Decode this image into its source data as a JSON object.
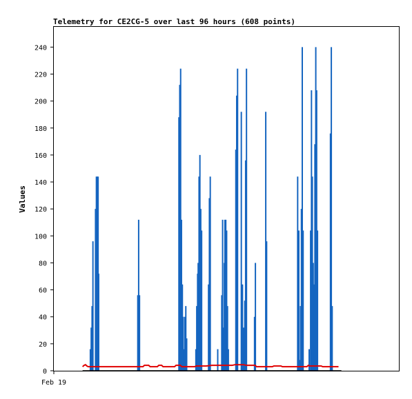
{
  "chart_data": {
    "type": "line",
    "title": "Telemetry for CE2CG-5 over last 96 hours (608 points)",
    "xlabel": "",
    "ylabel": "Values",
    "x_tick_labels": [
      {
        "label": "Feb 19",
        "hours": 0
      }
    ],
    "xlim_hours": [
      0,
      96
    ],
    "ylim": [
      0,
      255
    ],
    "yticks": [
      0,
      20,
      40,
      60,
      80,
      100,
      120,
      140,
      160,
      180,
      200,
      220,
      240
    ],
    "grid": false,
    "legend": "none",
    "colors": {
      "spikes": "#1565c0",
      "baseline": "#e00000",
      "floor": "#000000",
      "frame": "#000000"
    },
    "series": [
      {
        "color": "#1565c0",
        "style": "spikes",
        "points": [
          [
            12.7,
            16
          ],
          [
            13.0,
            32
          ],
          [
            13.3,
            48
          ],
          [
            13.6,
            96
          ],
          [
            14.5,
            120
          ],
          [
            14.8,
            144
          ],
          [
            15.1,
            144
          ],
          [
            15.4,
            144
          ],
          [
            15.6,
            72
          ],
          [
            29.2,
            56
          ],
          [
            29.5,
            112
          ],
          [
            29.8,
            56
          ],
          [
            43.5,
            188
          ],
          [
            43.8,
            212
          ],
          [
            44.1,
            224
          ],
          [
            44.4,
            112
          ],
          [
            44.7,
            64
          ],
          [
            45.0,
            40
          ],
          [
            45.3,
            16
          ],
          [
            45.6,
            40
          ],
          [
            45.9,
            48
          ],
          [
            46.2,
            24
          ],
          [
            49.4,
            16
          ],
          [
            49.7,
            48
          ],
          [
            50.0,
            72
          ],
          [
            50.2,
            80
          ],
          [
            50.5,
            144
          ],
          [
            50.8,
            160
          ],
          [
            51.1,
            120
          ],
          [
            51.4,
            104
          ],
          [
            53.8,
            64
          ],
          [
            54.1,
            128
          ],
          [
            54.4,
            144
          ],
          [
            57.0,
            16
          ],
          [
            58.4,
            56
          ],
          [
            58.7,
            112
          ],
          [
            59.0,
            32
          ],
          [
            59.3,
            80
          ],
          [
            59.5,
            112
          ],
          [
            59.8,
            112
          ],
          [
            60.1,
            104
          ],
          [
            60.4,
            48
          ],
          [
            60.7,
            16
          ],
          [
            63.3,
            164
          ],
          [
            63.6,
            204
          ],
          [
            63.9,
            224
          ],
          [
            65.2,
            192
          ],
          [
            65.6,
            64
          ],
          [
            66.0,
            32
          ],
          [
            66.4,
            52
          ],
          [
            66.7,
            156
          ],
          [
            67.0,
            224
          ],
          [
            69.8,
            40
          ],
          [
            70.1,
            80
          ],
          [
            73.7,
            192
          ],
          [
            74.0,
            96
          ],
          [
            84.8,
            144
          ],
          [
            85.2,
            104
          ],
          [
            85.5,
            8
          ],
          [
            85.8,
            48
          ],
          [
            86.1,
            120
          ],
          [
            86.4,
            240
          ],
          [
            86.7,
            104
          ],
          [
            88.8,
            16
          ],
          [
            89.3,
            104
          ],
          [
            89.6,
            208
          ],
          [
            89.9,
            144
          ],
          [
            90.2,
            80
          ],
          [
            90.5,
            64
          ],
          [
            90.8,
            168
          ],
          [
            91.1,
            240
          ],
          [
            91.4,
            208
          ],
          [
            91.7,
            104
          ],
          [
            96.2,
            176
          ],
          [
            96.5,
            240
          ],
          [
            96.8,
            48
          ]
        ]
      },
      {
        "color": "#e00000",
        "style": "line",
        "points": [
          [
            10.0,
            3
          ],
          [
            10.5,
            4
          ],
          [
            11.0,
            4.5
          ],
          [
            11.5,
            3.5
          ],
          [
            12.0,
            3
          ],
          [
            20,
            3
          ],
          [
            31,
            3
          ],
          [
            31.5,
            4
          ],
          [
            33,
            4
          ],
          [
            33.5,
            3
          ],
          [
            36,
            3
          ],
          [
            36.5,
            4
          ],
          [
            37.5,
            4
          ],
          [
            38,
            3
          ],
          [
            42,
            3
          ],
          [
            42.5,
            4
          ],
          [
            44,
            4
          ],
          [
            44.5,
            3
          ],
          [
            49,
            3
          ],
          [
            49.5,
            3.5
          ],
          [
            53,
            3.5
          ],
          [
            55,
            4
          ],
          [
            62,
            4
          ],
          [
            63,
            4.5
          ],
          [
            66,
            4.5
          ],
          [
            67,
            4
          ],
          [
            70,
            4
          ],
          [
            70.5,
            3
          ],
          [
            76,
            3
          ],
          [
            76.5,
            3.5
          ],
          [
            79,
            3.5
          ],
          [
            79.5,
            3
          ],
          [
            88,
            3
          ],
          [
            88.5,
            4
          ],
          [
            89,
            3.5
          ],
          [
            93,
            3.5
          ],
          [
            93.5,
            3
          ],
          [
            99,
            3
          ]
        ]
      },
      {
        "color": "#000000",
        "style": "line",
        "points": [
          [
            10,
            0
          ],
          [
            100,
            0
          ]
        ]
      }
    ]
  }
}
